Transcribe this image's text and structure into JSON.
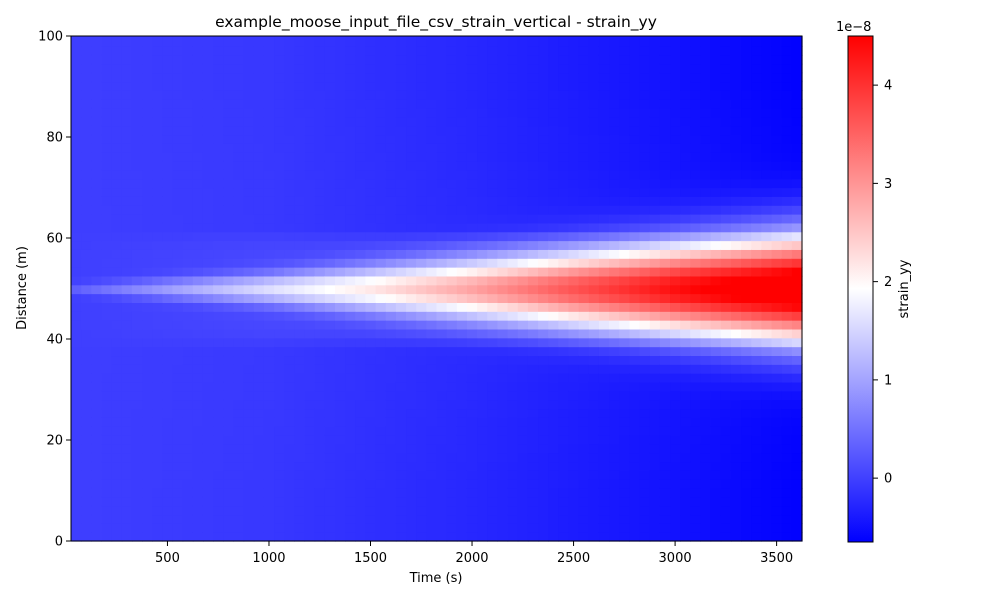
{
  "chart_data": {
    "type": "heatmap",
    "title": "example_moose_input_file_csv_strain_vertical - strain_yy",
    "xlabel": "Time (s)",
    "ylabel": "Distance (m)",
    "xlim": [
      25,
      3625
    ],
    "ylim": [
      0,
      100
    ],
    "x_ticks": [
      500,
      1000,
      1500,
      2000,
      2500,
      3000,
      3500
    ],
    "y_ticks": [
      0,
      20,
      40,
      60,
      80,
      100
    ],
    "grid": false,
    "colormap": "bwr",
    "colorbar": {
      "label": "strain_yy",
      "offset_text": "1e−8",
      "range": [
        -0.65,
        4.5
      ],
      "ticks": [
        0,
        1,
        2,
        3,
        4
      ]
    },
    "colors": {
      "low": "#0000ff",
      "mid": "#ffffff",
      "high": "#ff0000"
    },
    "field": {
      "unit_multiplier": "1e-8",
      "time_range": [
        25,
        3625
      ],
      "time_step": 50,
      "distance_range": [
        0,
        100
      ],
      "distance_levels": [
        0,
        1.75,
        3.5,
        5.25,
        7,
        8.75,
        10.5,
        12.25,
        14,
        15.75,
        17.5,
        19.25,
        21,
        22.75,
        24.5,
        26.25,
        28,
        29.75,
        31.5,
        33.25,
        35,
        36.75,
        38.5,
        40.25,
        42,
        43.75,
        45.5,
        47.25,
        49,
        50.75,
        52.5,
        54.25,
        56,
        57.75,
        59.5,
        61.25,
        63,
        64.75,
        66.5,
        68.25,
        70,
        71.75,
        73.5,
        75.25,
        77,
        78.75,
        80.5,
        82.25,
        84,
        85.75,
        87.5,
        89.25,
        91,
        92.75,
        94.5,
        96.25,
        98,
        100
      ],
      "center_peak_vs_time": [
        [
          25,
          0.3
        ],
        [
          500,
          0.9
        ],
        [
          1000,
          1.5
        ],
        [
          1500,
          2.0
        ],
        [
          2000,
          2.6
        ],
        [
          2500,
          3.3
        ],
        [
          3000,
          3.9
        ],
        [
          3600,
          4.4
        ]
      ],
      "plume_width_vs_time_m": [
        [
          25,
          1
        ],
        [
          1000,
          3
        ],
        [
          2000,
          6
        ],
        [
          3000,
          9
        ],
        [
          3600,
          11
        ]
      ],
      "background_vs_time": [
        [
          25,
          0.0
        ],
        [
          1000,
          -0.05
        ],
        [
          2000,
          -0.2
        ],
        [
          3000,
          -0.4
        ],
        [
          3600,
          -0.55
        ]
      ]
    }
  }
}
